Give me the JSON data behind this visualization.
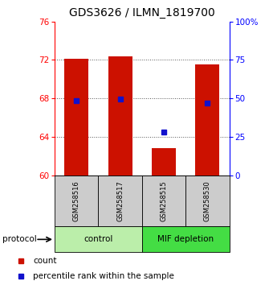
{
  "title": "GDS3626 / ILMN_1819700",
  "samples": [
    "GSM258516",
    "GSM258517",
    "GSM258515",
    "GSM258530"
  ],
  "group_labels": [
    "control",
    "MIF depletion"
  ],
  "bar_bottoms": [
    60,
    60,
    60,
    60
  ],
  "bar_tops": [
    72.1,
    72.4,
    62.8,
    71.5
  ],
  "percentile_ranks": [
    67.8,
    67.9,
    64.5,
    67.5
  ],
  "ylim_left": [
    60,
    76
  ],
  "ylim_right": [
    0,
    100
  ],
  "yticks_left": [
    60,
    64,
    68,
    72,
    76
  ],
  "yticks_right": [
    0,
    25,
    50,
    75,
    100
  ],
  "ytick_labels_right": [
    "0",
    "25",
    "50",
    "75",
    "100%"
  ],
  "bar_color": "#cc1100",
  "percentile_color": "#1111cc",
  "grid_yticks": [
    64,
    68,
    72
  ],
  "control_color": "#bbeeaa",
  "mif_color": "#44dd44",
  "sample_box_color": "#cccccc",
  "title_fontsize": 10,
  "tick_fontsize": 7.5,
  "legend_fontsize": 7.5,
  "bar_width": 0.55
}
